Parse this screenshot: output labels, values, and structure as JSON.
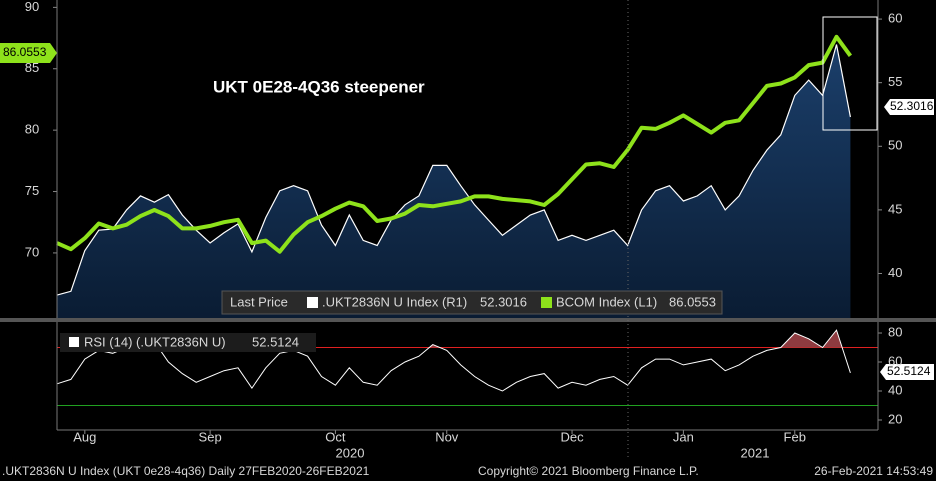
{
  "chart_data": [
    {
      "type": "line",
      "annotation": "UKT 0E28-4Q36 steepener",
      "legend_title": "Last Price",
      "categories": [
        null,
        null,
        "Aug",
        null,
        null,
        null,
        null,
        null,
        null,
        null,
        null,
        "Sep",
        null,
        null,
        null,
        null,
        null,
        null,
        null,
        null,
        "Oct",
        null,
        null,
        null,
        null,
        null,
        null,
        null,
        "Nov",
        null,
        null,
        null,
        null,
        null,
        null,
        null,
        null,
        "Dec",
        null,
        null,
        null,
        null,
        null,
        null,
        null,
        "Jan",
        null,
        null,
        null,
        null,
        null,
        null,
        null,
        "Feb",
        null,
        null,
        null,
        null
      ],
      "year_labels": [
        "2020",
        "2021"
      ],
      "ylim": [
        64.7,
        90.6
      ],
      "yticks": [
        70,
        75,
        80,
        85,
        90
      ],
      "y2lim": [
        36.5,
        61.5
      ],
      "y2ticks": [
        40,
        45,
        50,
        55,
        60
      ],
      "series": [
        {
          "name": ".UKT2836N U Index  (R1)",
          "axis": "y2",
          "style": "area",
          "color": "#ffffff",
          "fill": "#0e2b4d",
          "values": [
            38.3,
            38.6,
            41.8,
            43.4,
            43.5,
            45.0,
            46.1,
            45.6,
            46.2,
            44.6,
            43.4,
            42.4,
            43.2,
            43.9,
            41.7,
            44.4,
            46.5,
            46.9,
            46.5,
            43.8,
            42.2,
            44.6,
            42.6,
            42.2,
            44.2,
            45.4,
            46.1,
            48.5,
            48.5,
            46.9,
            45.4,
            44.2,
            43.0,
            43.8,
            44.6,
            45.0,
            42.6,
            43.0,
            42.6,
            43.0,
            43.4,
            42.2,
            45.0,
            46.5,
            46.9,
            45.7,
            46.1,
            46.9,
            45.0,
            46.1,
            48.1,
            49.7,
            50.9,
            54.0,
            55.2,
            54.0,
            58.0,
            52.3016
          ]
        },
        {
          "name": "BCOM Index  (L1)",
          "axis": "y",
          "style": "line",
          "color": "#8ee21b",
          "values": [
            70.8,
            70.3,
            71.2,
            72.4,
            72.0,
            72.3,
            73.0,
            73.5,
            73.0,
            72.0,
            72.0,
            72.2,
            72.5,
            72.7,
            70.8,
            71.0,
            70.1,
            71.5,
            72.5,
            73.0,
            73.6,
            74.1,
            73.8,
            72.6,
            72.8,
            73.2,
            73.9,
            73.8,
            74.0,
            74.2,
            74.6,
            74.6,
            74.4,
            74.3,
            74.2,
            73.9,
            74.8,
            76.0,
            77.2,
            77.3,
            77.0,
            78.4,
            80.2,
            80.1,
            80.6,
            81.2,
            80.5,
            79.8,
            80.6,
            80.8,
            82.2,
            83.6,
            83.8,
            84.3,
            85.3,
            85.5,
            87.6,
            86.0553
          ]
        }
      ]
    },
    {
      "type": "line",
      "ylim": [
        13.1,
        87.6
      ],
      "yticks": [
        20,
        40,
        60,
        80
      ],
      "thresholds": [
        {
          "value": 70,
          "color": "#e02020"
        },
        {
          "value": 30,
          "color": "#20a020"
        }
      ],
      "series": [
        {
          "name": "RSI (14) (.UKT2836N U)",
          "color": "#ffffff",
          "overbought_fill": "#8e3b40",
          "values": [
            45,
            48,
            62,
            68,
            66,
            70,
            72,
            74,
            60,
            52,
            46,
            50,
            54,
            56,
            42,
            56,
            66,
            68,
            64,
            50,
            44,
            56,
            46,
            44,
            54,
            60,
            64,
            72,
            68,
            58,
            50,
            44,
            40,
            46,
            50,
            52,
            42,
            46,
            44,
            48,
            50,
            44,
            56,
            62,
            62,
            58,
            60,
            62,
            54,
            58,
            64,
            68,
            70,
            80,
            76,
            70,
            82,
            52.5124
          ]
        }
      ]
    }
  ],
  "footer": {
    "left": ".UKT2836N U Index (UKT 0e28-4q36)  Daily 27FEB2020-26FEB2021",
    "center": "Copyright© 2021 Bloomberg Finance L.P.",
    "right": "26-Feb-2021 14:53:49"
  }
}
